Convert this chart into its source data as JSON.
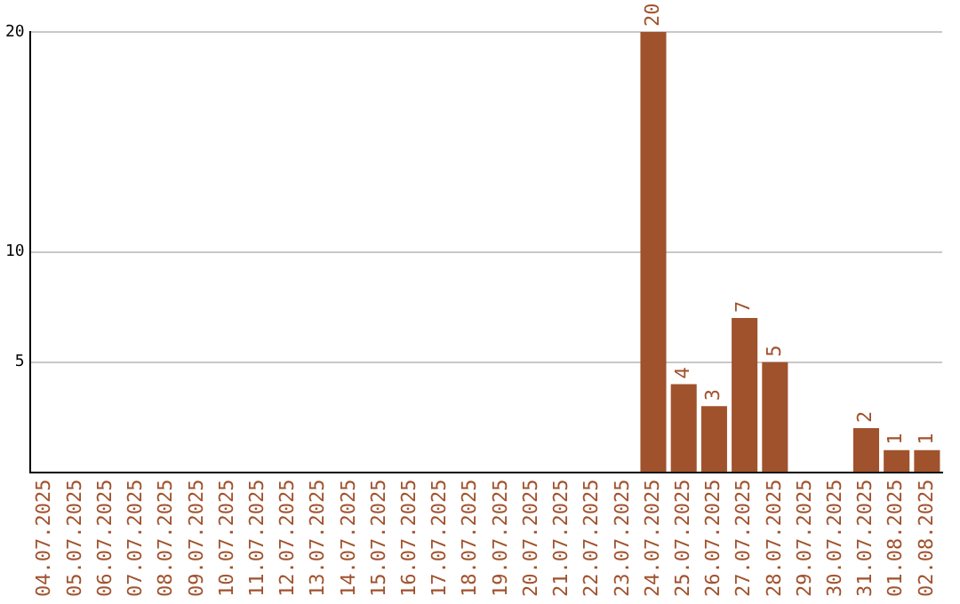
{
  "chart_data": {
    "type": "bar",
    "categories": [
      "04.07.2025",
      "05.07.2025",
      "06.07.2025",
      "07.07.2025",
      "08.07.2025",
      "09.07.2025",
      "10.07.2025",
      "11.07.2025",
      "12.07.2025",
      "13.07.2025",
      "14.07.2025",
      "15.07.2025",
      "16.07.2025",
      "17.07.2025",
      "18.07.2025",
      "19.07.2025",
      "20.07.2025",
      "21.07.2025",
      "22.07.2025",
      "23.07.2025",
      "24.07.2025",
      "25.07.2025",
      "26.07.2025",
      "27.07.2025",
      "28.07.2025",
      "29.07.2025",
      "30.07.2025",
      "31.07.2025",
      "01.08.2025",
      "02.08.2025"
    ],
    "values": [
      0,
      0,
      0,
      0,
      0,
      0,
      0,
      0,
      0,
      0,
      0,
      0,
      0,
      0,
      0,
      0,
      0,
      0,
      0,
      0,
      20,
      4,
      3,
      7,
      5,
      0,
      0,
      2,
      1,
      1
    ],
    "value_labels": [
      null,
      null,
      null,
      null,
      null,
      null,
      null,
      null,
      null,
      null,
      null,
      null,
      null,
      null,
      null,
      null,
      null,
      null,
      null,
      null,
      "20",
      "4",
      "3",
      "7",
      "5",
      null,
      null,
      "2",
      "1",
      "1"
    ],
    "color": "#a0522d",
    "ylim": [
      0,
      20
    ],
    "yticks": [
      5,
      10,
      20
    ],
    "grid": "y",
    "legend": false
  }
}
